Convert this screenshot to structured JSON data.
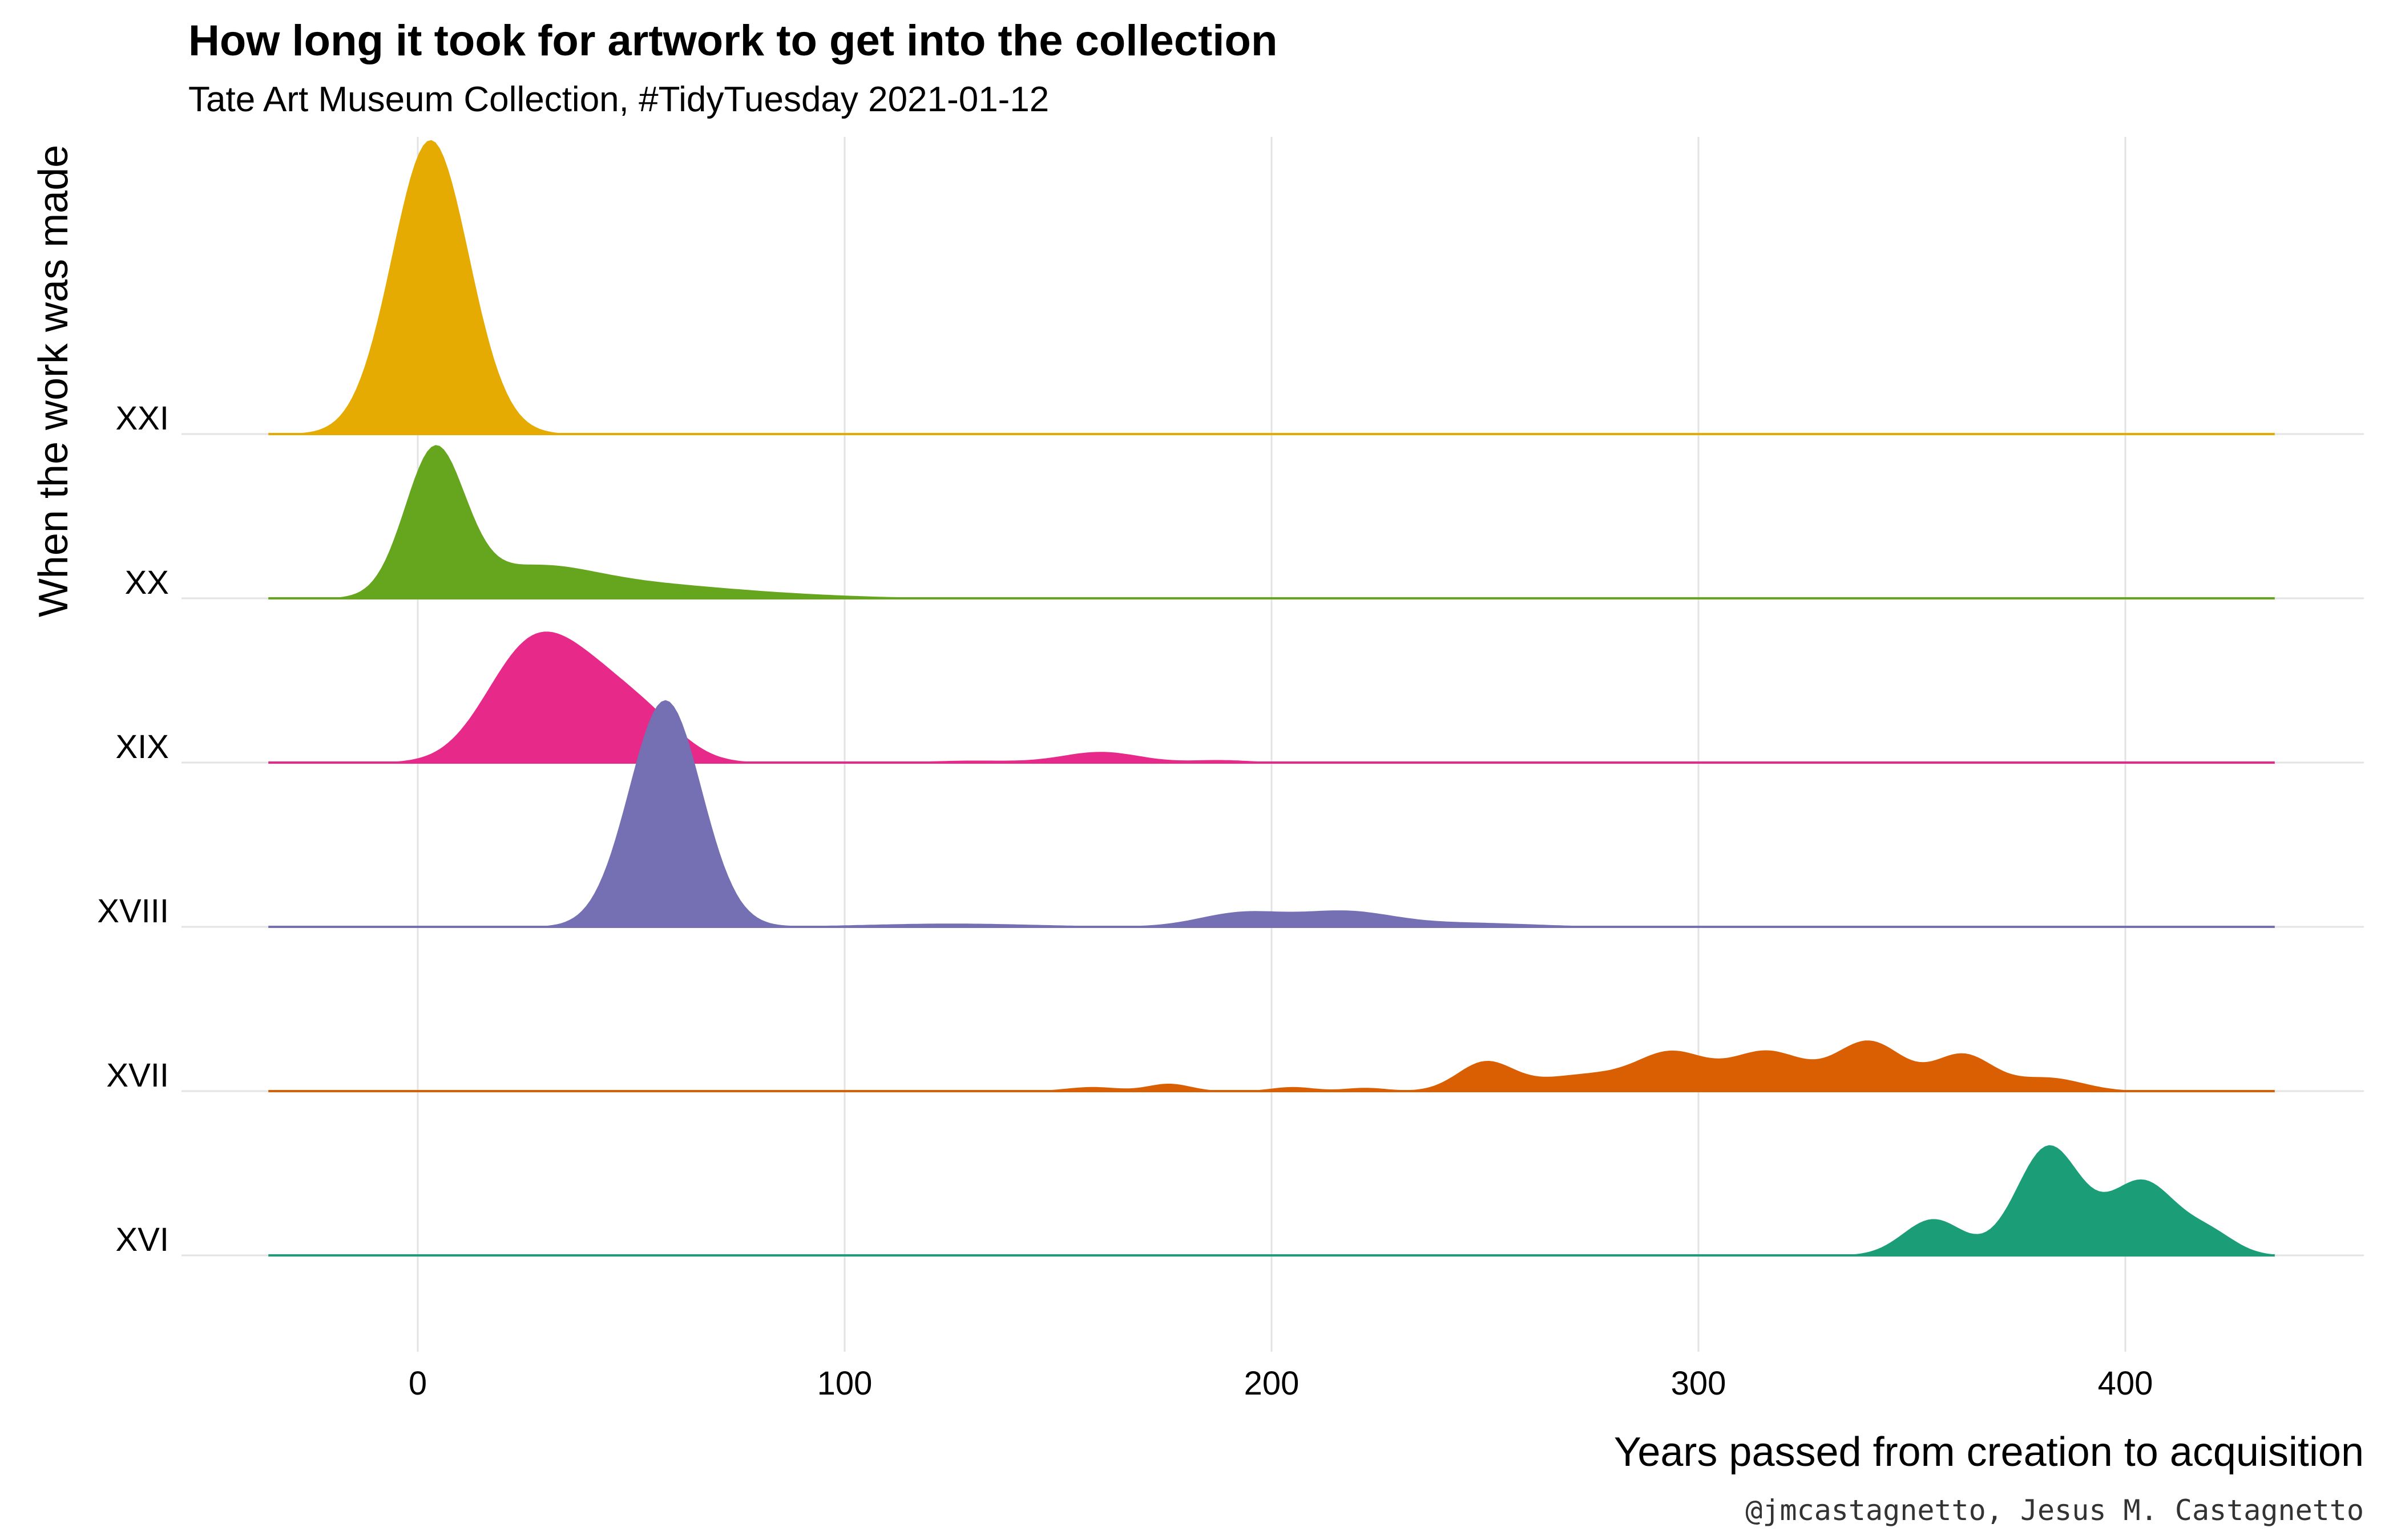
{
  "chart_data": {
    "type": "area",
    "title": "How long it took for artwork to get into the collection",
    "subtitle": "Tate Art Museum Collection, #TidyTuesday 2021-01-12",
    "xlabel": "Years passed from creation to acquisition",
    "ylabel": "When the work was made",
    "caption": "@jmcastagnetto, Jesus M. Castagnetto",
    "xlim": [
      -35,
      435
    ],
    "xticks": [
      0,
      100,
      200,
      300,
      400
    ],
    "grid": true,
    "legend": "none",
    "series": [
      {
        "name": "XXI",
        "color": "#E6AB02",
        "peaks": [
          {
            "center": 3,
            "width": 9,
            "height": 1.79
          }
        ]
      },
      {
        "name": "XX",
        "color": "#66A61E",
        "peaks": [
          {
            "center": 4,
            "width": 7,
            "height": 0.88
          },
          {
            "center": 26,
            "width": 14,
            "height": 0.16
          },
          {
            "center": 50,
            "width": 20,
            "height": 0.08
          },
          {
            "center": 82,
            "width": 20,
            "height": 0.02
          }
        ]
      },
      {
        "name": "XIX",
        "color": "#E7298A",
        "peaks": [
          {
            "center": 25,
            "width": 10,
            "height": 0.58
          },
          {
            "center": 41,
            "width": 11,
            "height": 0.47
          },
          {
            "center": 56,
            "width": 8,
            "height": 0.13
          },
          {
            "center": 160,
            "width": 9,
            "height": 0.065
          },
          {
            "center": 130,
            "width": 10,
            "height": 0.012
          },
          {
            "center": 188,
            "width": 7,
            "height": 0.015
          }
        ]
      },
      {
        "name": "XVIII",
        "color": "#7570B3",
        "peaks": [
          {
            "center": 58,
            "width": 8.5,
            "height": 1.38
          },
          {
            "center": 125,
            "width": 20,
            "height": 0.02
          },
          {
            "center": 193,
            "width": 10,
            "height": 0.085
          },
          {
            "center": 217,
            "width": 11,
            "height": 0.09
          },
          {
            "center": 245,
            "width": 16,
            "height": 0.025
          }
        ]
      },
      {
        "name": "XVII",
        "color": "#D95F02",
        "peaks": [
          {
            "center": 158,
            "width": 6,
            "height": 0.025
          },
          {
            "center": 176,
            "width": 5,
            "height": 0.045
          },
          {
            "center": 205,
            "width": 5,
            "height": 0.025
          },
          {
            "center": 222,
            "width": 5,
            "height": 0.02
          },
          {
            "center": 250,
            "width": 6.5,
            "height": 0.17
          },
          {
            "center": 274,
            "width": 12,
            "height": 0.1
          },
          {
            "center": 294,
            "width": 8,
            "height": 0.21
          },
          {
            "center": 316,
            "width": 9,
            "height": 0.24
          },
          {
            "center": 340,
            "width": 8,
            "height": 0.3
          },
          {
            "center": 362,
            "width": 7,
            "height": 0.22
          },
          {
            "center": 382,
            "width": 8,
            "height": 0.08
          }
        ]
      },
      {
        "name": "XVI",
        "color": "#1B9E77",
        "peaks": [
          {
            "center": 355,
            "width": 7,
            "height": 0.22
          },
          {
            "center": 382,
            "width": 7.5,
            "height": 0.66
          },
          {
            "center": 404,
            "width": 8,
            "height": 0.45
          },
          {
            "center": 420,
            "width": 6,
            "height": 0.12
          }
        ]
      }
    ]
  }
}
